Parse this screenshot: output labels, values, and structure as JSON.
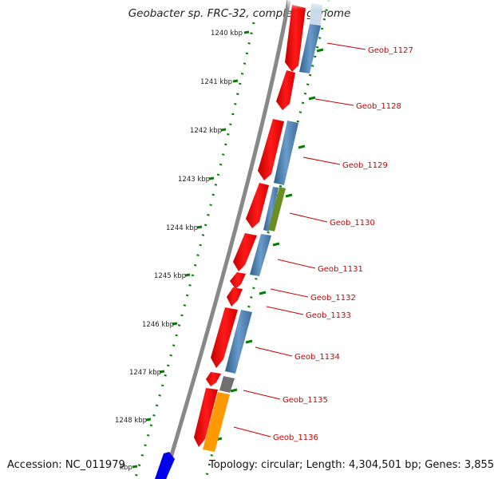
{
  "title": "Geobacter sp. FRC-32, complete genome",
  "footer": {
    "accession": "Accession: NC_011979",
    "topology": "Topology: circular; Length: 4,304,501 bp; Genes: 3,855"
  },
  "ruler_labels": [
    "1240 kbp",
    "1241 kbp",
    "1242 kbp",
    "1243 kbp",
    "1244 kbp",
    "1245 kbp",
    "1246 kbp",
    "1247 kbp",
    "1248 kbp",
    "kbp"
  ],
  "genes": [
    {
      "label": "Geob_1127"
    },
    {
      "label": "Geob_1128"
    },
    {
      "label": "Geob_1129"
    },
    {
      "label": "Geob_1130"
    },
    {
      "label": "Geob_1131"
    },
    {
      "label": "Geob_1132"
    },
    {
      "label": "Geob_1133"
    },
    {
      "label": "Geob_1134"
    },
    {
      "label": "Geob_1135"
    },
    {
      "label": "Geob_1136"
    }
  ],
  "colors": {
    "cds": "#ff0000",
    "gene_label": "#cc0000",
    "blue_feature": "#4f86b8",
    "green_feature": "#6b8e23",
    "grey_feature": "#707070",
    "orange_feature": "#ff9900",
    "backbone": "#888888",
    "ticks": "#008000",
    "bottom_feature": "#0000ee"
  }
}
